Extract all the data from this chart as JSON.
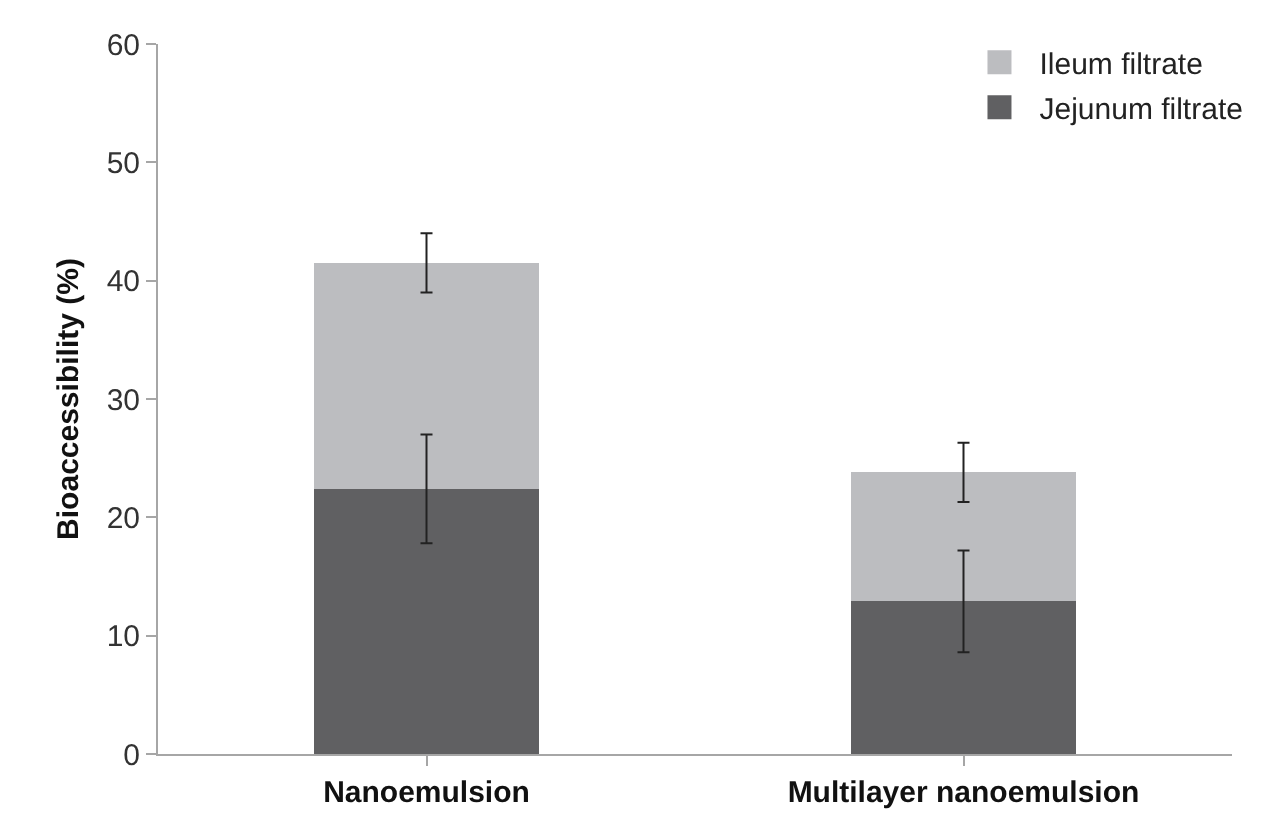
{
  "chart_data": {
    "type": "bar",
    "stacked": true,
    "ylabel": "Bioaccessibility (%)",
    "categories": [
      "Nanoemulsion",
      "Multilayer nanoemulsion"
    ],
    "series": [
      {
        "name": "Jejunum filtrate",
        "color": "#606062",
        "values": [
          22.4,
          12.9
        ],
        "errors": [
          4.6,
          4.3
        ]
      },
      {
        "name": "Ileum filtrate",
        "color": "#bcbdc0",
        "values": [
          19.1,
          10.9
        ],
        "errors": [
          2.5,
          2.5
        ]
      }
    ],
    "ylim": [
      0,
      60
    ],
    "yticks": [
      0,
      10,
      20,
      30,
      40,
      50,
      60
    ],
    "grid": false,
    "legend": "top right"
  }
}
